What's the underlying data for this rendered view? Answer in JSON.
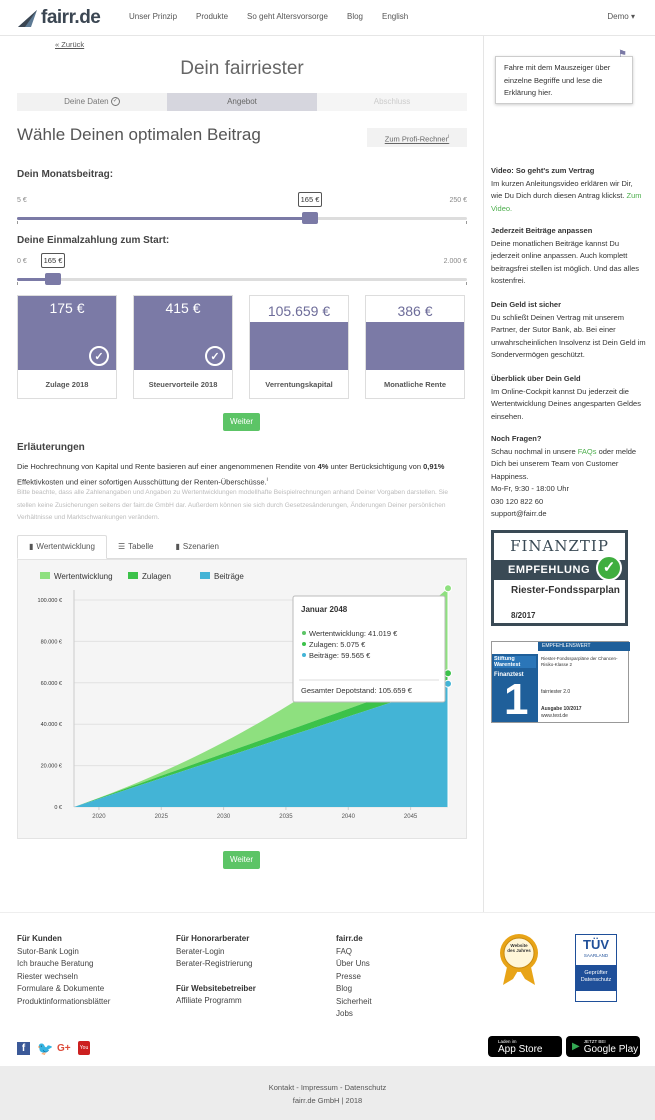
{
  "header": {
    "logo": "fairr.de",
    "nav": [
      "Unser Prinzip",
      "Produkte",
      "So geht Altersvorsorge",
      "Blog",
      "English"
    ],
    "demo": "Demo"
  },
  "main": {
    "back": "« Zurück",
    "title": "Dein fairriester",
    "steps": [
      "Deine Daten",
      "Angebot",
      "Abschluss"
    ],
    "heading": "Wähle Deinen optimalen Beitrag",
    "profi": "Zum Profi-Rechner",
    "monthly": {
      "label": "Dein Monatsbeitrag:",
      "min": "5 €",
      "max": "250 €",
      "value": "165 €",
      "fraction": 0.65
    },
    "oneoff": {
      "label": "Deine Einmalzahlung zum Start:",
      "min": "0 €",
      "max": "2.000 €",
      "value": "165 €",
      "fraction": 0.08
    },
    "cards": [
      {
        "value": "175 €",
        "caption": "Zulage 2018",
        "checked": true
      },
      {
        "value": "415 €",
        "caption": "Steuervorteile 2018",
        "checked": true
      },
      {
        "value": "105.659 €",
        "caption": "Verrentungskapital",
        "checked": false
      },
      {
        "value": "386 €",
        "caption": "Monatliche Rente",
        "checked": false
      }
    ],
    "weiter": "Weiter",
    "erl_title": "Erläuterungen",
    "erl_text_1": "Die Hochrechnung von Kapital und Rente basieren auf einer angenommenen Rendite von ",
    "erl_rate": "4%",
    "erl_text_2": " unter Berücksichtigung von ",
    "erl_cost": "0,91%",
    "erl_text_3": " Effektivkosten und einer sofortigen Ausschüttung der Renten-Überschüsse.",
    "erl_small": "Bitte beachte, dass alle Zahlenangaben und Angaben zu Wertentwicklungen modellhafte Beispielrechnungen anhand Deiner Vorgaben darstellen. Sie stellen keine Zusicherungen seitens der fairr.de GmbH dar. Außerdem können sie sich durch Gesetzesänderungen, Änderungen Deiner persönlichen Verhältnisse und Marktschwankungen verändern.",
    "tabs": [
      "Wertentwicklung",
      "Tabelle",
      "Szenarien"
    ]
  },
  "chart_data": {
    "type": "area",
    "legend": [
      "Wertentwicklung",
      "Zulagen",
      "Beiträge"
    ],
    "colors": {
      "Wertentwicklung": "#8ee07f",
      "Zulagen": "#3cc24a",
      "Beiträge": "#43b4d6"
    },
    "x": [
      2018,
      2048
    ],
    "xticks": [
      "2020",
      "2025",
      "2030",
      "2035",
      "2040",
      "2045"
    ],
    "yticks": [
      "0 €",
      "20.000 €",
      "40.000 €",
      "60.000 €",
      "80.000 €",
      "100.000 €"
    ],
    "ylim": [
      0,
      100000
    ],
    "series": [
      {
        "name": "Beiträge",
        "end": 59565
      },
      {
        "name": "Zulagen",
        "end": 5075
      },
      {
        "name": "Wertentwicklung",
        "end": 41019
      }
    ],
    "tooltip": {
      "title": "Januar 2048",
      "lines": [
        "Wertentwicklung: 41.019 €",
        "Zulagen: 5.075 €",
        "Beiträge: 59.565 €"
      ],
      "total": "Gesamter Depotstand: 105.659 €"
    }
  },
  "sidebar": {
    "tip": "Fahre mit dem Mauszeiger über einzelne Begriffe und lese die Erklärung hier.",
    "video_title": "Video: So geht's zum Vertrag",
    "video_text": "Im kurzen Anleitungsvideo erklären wir Dir, wie Du Dich durch diesen Antrag klickst.",
    "video_link": "Zum Video.",
    "b2_title": "Jederzeit Beiträge anpassen",
    "b2_text": "Deine monatlichen Beiträge kannst Du jederzeit online anpassen. Auch komplett beitragsfrei stellen ist möglich. Und das alles kostenfrei.",
    "b3_title": "Dein Geld ist sicher",
    "b3_text": "Du schließt Deinen Vertrag mit unserem Partner, der Sutor Bank, ab. Bei einer unwahrscheinlichen Insolvenz ist Dein Geld im Sondervermögen geschützt.",
    "b4_title": "Überblick über Dein Geld",
    "b4_text": "Im Online-Cockpit kannst Du jederzeit die Wertentwicklung Deines angesparten Geldes einsehen.",
    "b5_title": "Noch Fragen?",
    "b5_pre": "Schau nochmal in unsere ",
    "b5_faq": "FAQs",
    "b5_post": " oder melde Dich bei unserem Team von Customer Happiness.",
    "hours": "Mo-Fr, 9:30 - 18:00 Uhr",
    "phone": "030 120 822 60",
    "email": "support@fairr.de",
    "ft_brand": "FINANZTIP",
    "ft_emp": "EMPFEHLUNG",
    "ft_product": "Riester-Fondssparplan",
    "ft_date": "8/2017",
    "sw_head": "EMPFEHLENSWERT",
    "sw_brand": "Stiftung Warentest",
    "sw_fin": "Finanztest",
    "sw_text": "Riester-Fondssparpläne der Chancen-Risiko-Klasse 2",
    "sw_name": "fairriester 2.0",
    "sw_issue": "Ausgabe 10/2017",
    "sw_url": "www.test.de"
  },
  "footer": {
    "col1_title": "Für Kunden",
    "col1": [
      "Sutor-Bank Login",
      "Ich brauche Beratung",
      "Riester wechseln",
      "Formulare & Dokumente",
      "Produktinformationsblätter"
    ],
    "col2_title": "Für Honorarberater",
    "col2": [
      "Berater-Login",
      "Berater-Registrierung"
    ],
    "col2b_title": "Für Websitebetreiber",
    "col2b": [
      "Affiliate Programm"
    ],
    "col3_title": "fairr.de",
    "col3": [
      "FAQ",
      "Über Uns",
      "Presse",
      "Blog",
      "Sicherheit",
      "Jobs"
    ],
    "tuv_brand": "TÜV",
    "tuv_region": "SAARLAND",
    "tuv_text": "Geprüfter Datenschutz",
    "award": "Website des Jahres",
    "appstore_small": "Laden im",
    "appstore": "App Store",
    "play_small": "JETZT BEI",
    "play": "Google Play",
    "legal": "Kontakt - Impressum - Datenschutz",
    "copy": "fairr.de GmbH | 2018"
  }
}
